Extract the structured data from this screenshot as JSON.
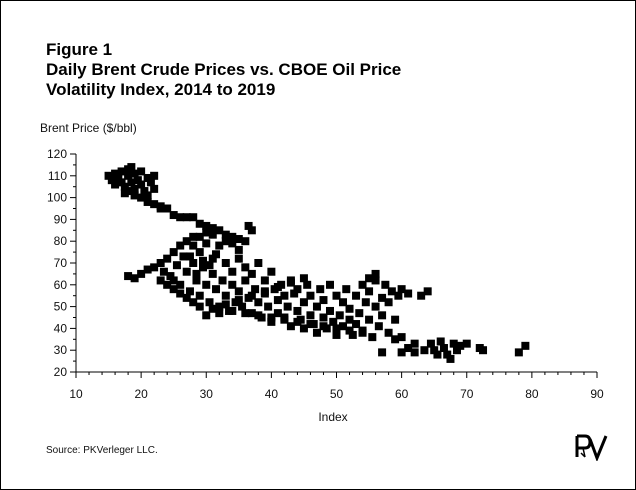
{
  "figure": {
    "label": "Figure 1",
    "title_line1": "Daily Brent Crude Prices vs. CBOE Oil Price",
    "title_line2": "Volatility Index, 2014 to 2019",
    "source": "Source: PKVerleger LLC.",
    "logo_text": "PKV"
  },
  "chart_data": {
    "type": "scatter",
    "xlabel": "Index",
    "ylabel": "Brent Price ($/bbl)",
    "xlim": [
      10,
      90
    ],
    "ylim": [
      20,
      120
    ],
    "x_ticks": [
      10,
      20,
      30,
      40,
      50,
      60,
      70,
      80,
      90
    ],
    "y_ticks": [
      20,
      30,
      40,
      50,
      60,
      70,
      80,
      90,
      100,
      110,
      120
    ],
    "grid": false,
    "marker": "square",
    "marker_color": "#000000",
    "points": [
      [
        15,
        110
      ],
      [
        15.5,
        108
      ],
      [
        16,
        111
      ],
      [
        16.5,
        109
      ],
      [
        17,
        107
      ],
      [
        17,
        112
      ],
      [
        17.5,
        105
      ],
      [
        18,
        113
      ],
      [
        18,
        110
      ],
      [
        18.5,
        107
      ],
      [
        19,
        111
      ],
      [
        19,
        104
      ],
      [
        19.5,
        108
      ],
      [
        20,
        112
      ],
      [
        20,
        106
      ],
      [
        20.5,
        103
      ],
      [
        21,
        109
      ],
      [
        21,
        101
      ],
      [
        21.5,
        107
      ],
      [
        22,
        104
      ],
      [
        18,
        103
      ],
      [
        19,
        101
      ],
      [
        17.5,
        102
      ],
      [
        20,
        100
      ],
      [
        21,
        98
      ],
      [
        22,
        97
      ],
      [
        23,
        96
      ],
      [
        23,
        95
      ],
      [
        24,
        95
      ],
      [
        22,
        110
      ],
      [
        18.5,
        114
      ],
      [
        16,
        106
      ],
      [
        25,
        92
      ],
      [
        26,
        91
      ],
      [
        27,
        91
      ],
      [
        28,
        91
      ],
      [
        29,
        88
      ],
      [
        30,
        87
      ],
      [
        31,
        86
      ],
      [
        32,
        85
      ],
      [
        33,
        83
      ],
      [
        34,
        82
      ],
      [
        35,
        81
      ],
      [
        36,
        80
      ],
      [
        37,
        85
      ],
      [
        36.5,
        87
      ],
      [
        35,
        76
      ],
      [
        34,
        79
      ],
      [
        18,
        64
      ],
      [
        19,
        63
      ],
      [
        20,
        65
      ],
      [
        21,
        67
      ],
      [
        22,
        68
      ],
      [
        23,
        70
      ],
      [
        23.5,
        66
      ],
      [
        24,
        72
      ],
      [
        24.5,
        64
      ],
      [
        25,
        62
      ],
      [
        25,
        75
      ],
      [
        25.5,
        69
      ],
      [
        26,
        78
      ],
      [
        26,
        60
      ],
      [
        26.5,
        73
      ],
      [
        27,
        80
      ],
      [
        27,
        66
      ],
      [
        27.5,
        57
      ],
      [
        28,
        82
      ],
      [
        28,
        70
      ],
      [
        28.5,
        62
      ],
      [
        29,
        55
      ],
      [
        29,
        75
      ],
      [
        29.5,
        68
      ],
      [
        30,
        84
      ],
      [
        30,
        60
      ],
      [
        30.5,
        52
      ],
      [
        31,
        72
      ],
      [
        31,
        65
      ],
      [
        31.5,
        58
      ],
      [
        32,
        78
      ],
      [
        32,
        50
      ],
      [
        32.5,
        62
      ],
      [
        33,
        70
      ],
      [
        33,
        55
      ],
      [
        33.5,
        48
      ],
      [
        34,
        66
      ],
      [
        34,
        60
      ],
      [
        34.5,
        52
      ],
      [
        35,
        72
      ],
      [
        35,
        57
      ],
      [
        35.5,
        50
      ],
      [
        36,
        68
      ],
      [
        36,
        62
      ],
      [
        36.5,
        54
      ],
      [
        37,
        47
      ],
      [
        37,
        65
      ],
      [
        37.5,
        58
      ],
      [
        38,
        70
      ],
      [
        38,
        52
      ],
      [
        38.5,
        45
      ],
      [
        39,
        62
      ],
      [
        39,
        56
      ],
      [
        39.5,
        50
      ],
      [
        40,
        66
      ],
      [
        40,
        43
      ],
      [
        40.5,
        58
      ],
      [
        41,
        53
      ],
      [
        41,
        47
      ],
      [
        41.5,
        60
      ],
      [
        42,
        55
      ],
      [
        42,
        45
      ],
      [
        42.5,
        50
      ],
      [
        43,
        62
      ],
      [
        43,
        41
      ],
      [
        43.5,
        56
      ],
      [
        44,
        48
      ],
      [
        44,
        58
      ],
      [
        44.5,
        44
      ],
      [
        45,
        52
      ],
      [
        45,
        40
      ],
      [
        45.5,
        60
      ],
      [
        46,
        46
      ],
      [
        46,
        55
      ],
      [
        46.5,
        42
      ],
      [
        47,
        50
      ],
      [
        47,
        38
      ],
      [
        47.5,
        58
      ],
      [
        48,
        45
      ],
      [
        48,
        53
      ],
      [
        48.5,
        40
      ],
      [
        49,
        48
      ],
      [
        49,
        60
      ],
      [
        49.5,
        43
      ],
      [
        50,
        55
      ],
      [
        50,
        37
      ],
      [
        50.5,
        46
      ],
      [
        51,
        52
      ],
      [
        51,
        41
      ],
      [
        51.5,
        58
      ],
      [
        52,
        44
      ],
      [
        52,
        49
      ],
      [
        52.5,
        37
      ],
      [
        53,
        55
      ],
      [
        53,
        42
      ],
      [
        53.5,
        47
      ],
      [
        54,
        60
      ],
      [
        54,
        39
      ],
      [
        54.5,
        52
      ],
      [
        55,
        44
      ],
      [
        55,
        57
      ],
      [
        55.5,
        36
      ],
      [
        56,
        50
      ],
      [
        56,
        62
      ],
      [
        56.5,
        41
      ],
      [
        57,
        54
      ],
      [
        57,
        46
      ],
      [
        57.5,
        60
      ],
      [
        58,
        38
      ],
      [
        58,
        52
      ],
      [
        58.5,
        57
      ],
      [
        59,
        44
      ],
      [
        59,
        35
      ],
      [
        59.5,
        55
      ],
      [
        60,
        58
      ],
      [
        60,
        36
      ],
      [
        61,
        56
      ],
      [
        62,
        29
      ],
      [
        63,
        55
      ],
      [
        63.5,
        30
      ],
      [
        64,
        57
      ],
      [
        64.5,
        33
      ],
      [
        65,
        30
      ],
      [
        65.5,
        28
      ],
      [
        66,
        34
      ],
      [
        66.5,
        31
      ],
      [
        67,
        28
      ],
      [
        67.5,
        26
      ],
      [
        68,
        33
      ],
      [
        68.5,
        30
      ],
      [
        69,
        32
      ],
      [
        70,
        33
      ],
      [
        72,
        31
      ],
      [
        72.5,
        30
      ],
      [
        78,
        29
      ],
      [
        79,
        32
      ],
      [
        60,
        29
      ],
      [
        62,
        33
      ],
      [
        61,
        31
      ],
      [
        57,
        29
      ],
      [
        56,
        65
      ],
      [
        55,
        63
      ],
      [
        30,
        46
      ],
      [
        32,
        47
      ],
      [
        34,
        48
      ],
      [
        36,
        47
      ],
      [
        38,
        46
      ],
      [
        40,
        45
      ],
      [
        42,
        44
      ],
      [
        44,
        43
      ],
      [
        46,
        42
      ],
      [
        48,
        41
      ],
      [
        50,
        40
      ],
      [
        52,
        39
      ],
      [
        54,
        38
      ],
      [
        28,
        78
      ],
      [
        29,
        82
      ],
      [
        30,
        79
      ],
      [
        31,
        83
      ],
      [
        33,
        80
      ],
      [
        29.5,
        71
      ],
      [
        30.5,
        69
      ],
      [
        31.5,
        74
      ],
      [
        27.5,
        73
      ],
      [
        28.5,
        65
      ],
      [
        23,
        62
      ],
      [
        24,
        60
      ],
      [
        25,
        58
      ],
      [
        26,
        56
      ],
      [
        27,
        54
      ],
      [
        28,
        52
      ],
      [
        29,
        50
      ],
      [
        31,
        49
      ],
      [
        33,
        51
      ],
      [
        35,
        53
      ],
      [
        37,
        55
      ],
      [
        39,
        57
      ],
      [
        41,
        59
      ],
      [
        43,
        61
      ],
      [
        45,
        63
      ]
    ]
  }
}
